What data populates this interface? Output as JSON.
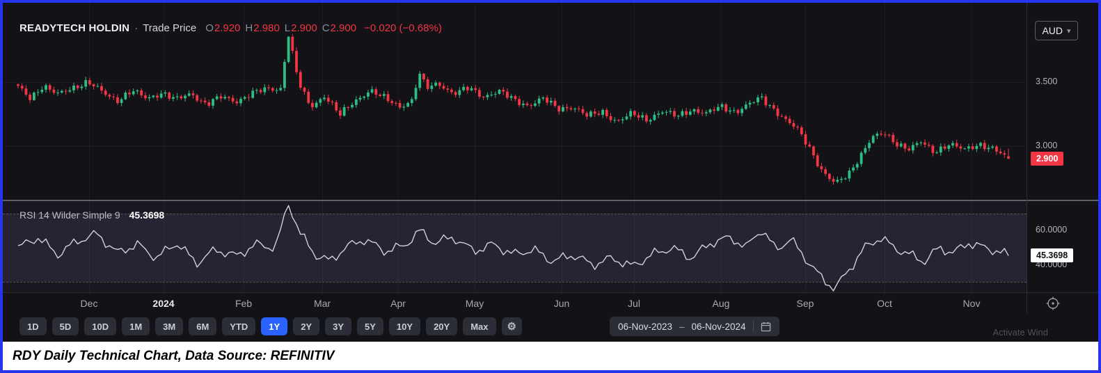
{
  "header": {
    "symbol": "READYTECH HOLDIN",
    "series_separator": "·",
    "series_type": "Trade Price",
    "ohlc": [
      {
        "label": "O",
        "value": "2.920"
      },
      {
        "label": "H",
        "value": "2.980"
      },
      {
        "label": "L",
        "value": "2.900"
      },
      {
        "label": "C",
        "value": "2.900"
      }
    ],
    "change": "−0.020 (−0.68%)",
    "currency_selector": "AUD"
  },
  "price_axis": {
    "last_price": "2.900"
  },
  "rsi_legend": {
    "title": "RSI 14 Wilder Simple 9",
    "value": "45.3698"
  },
  "toolbar": {
    "ranges": [
      "1D",
      "5D",
      "10D",
      "1M",
      "3M",
      "6M",
      "YTD",
      "1Y",
      "2Y",
      "3Y",
      "5Y",
      "10Y",
      "20Y",
      "Max"
    ],
    "active_range": "1Y",
    "gear_icon": "⚙",
    "date_from": "06-Nov-2023",
    "date_separator": "–",
    "date_to": "06-Nov-2024"
  },
  "caption": "RDY Daily Technical Chart, Data Source: REFINITIV",
  "watermark": "Activate Wind",
  "chart_data": {
    "type": "candlestick",
    "title": "READYTECH HOLDIN · Trade Price",
    "currency": "AUD",
    "period": {
      "from": "06-Nov-2023",
      "to": "06-Nov-2024",
      "interval": "Daily"
    },
    "last_ohlc": {
      "open": 2.92,
      "high": 2.98,
      "low": 2.9,
      "close": 2.9,
      "change": -0.02,
      "change_pct": -0.68
    },
    "y_axis": {
      "min": 2.58,
      "max": 4.12,
      "ticks": [
        3.5,
        3.0
      ],
      "tick_decimals": 3
    },
    "colors": {
      "up": "#2ebd85",
      "down": "#f23645"
    },
    "candle_count": 250,
    "close_trend_anchors": [
      [
        0.0,
        3.46
      ],
      [
        0.012,
        3.38
      ],
      [
        0.025,
        3.47
      ],
      [
        0.04,
        3.4
      ],
      [
        0.055,
        3.46
      ],
      [
        0.07,
        3.5
      ],
      [
        0.085,
        3.42
      ],
      [
        0.1,
        3.36
      ],
      [
        0.115,
        3.43
      ],
      [
        0.13,
        3.37
      ],
      [
        0.145,
        3.42
      ],
      [
        0.16,
        3.36
      ],
      [
        0.175,
        3.41
      ],
      [
        0.19,
        3.33
      ],
      [
        0.205,
        3.38
      ],
      [
        0.22,
        3.35
      ],
      [
        0.235,
        3.41
      ],
      [
        0.25,
        3.44
      ],
      [
        0.265,
        3.45
      ],
      [
        0.273,
        3.88
      ],
      [
        0.283,
        3.5
      ],
      [
        0.295,
        3.3
      ],
      [
        0.31,
        3.4
      ],
      [
        0.325,
        3.24
      ],
      [
        0.34,
        3.35
      ],
      [
        0.355,
        3.44
      ],
      [
        0.37,
        3.37
      ],
      [
        0.385,
        3.31
      ],
      [
        0.398,
        3.36
      ],
      [
        0.405,
        3.57
      ],
      [
        0.412,
        3.45
      ],
      [
        0.425,
        3.49
      ],
      [
        0.44,
        3.41
      ],
      [
        0.455,
        3.45
      ],
      [
        0.47,
        3.39
      ],
      [
        0.485,
        3.43
      ],
      [
        0.5,
        3.36
      ],
      [
        0.515,
        3.32
      ],
      [
        0.53,
        3.37
      ],
      [
        0.545,
        3.29
      ],
      [
        0.56,
        3.31
      ],
      [
        0.575,
        3.23
      ],
      [
        0.59,
        3.27
      ],
      [
        0.605,
        3.19
      ],
      [
        0.62,
        3.25
      ],
      [
        0.635,
        3.21
      ],
      [
        0.65,
        3.27
      ],
      [
        0.665,
        3.23
      ],
      [
        0.68,
        3.29
      ],
      [
        0.695,
        3.25
      ],
      [
        0.71,
        3.31
      ],
      [
        0.725,
        3.27
      ],
      [
        0.74,
        3.33
      ],
      [
        0.75,
        3.38
      ],
      [
        0.762,
        3.3
      ],
      [
        0.775,
        3.2
      ],
      [
        0.788,
        3.12
      ],
      [
        0.8,
        2.98
      ],
      [
        0.812,
        2.8
      ],
      [
        0.825,
        2.7
      ],
      [
        0.838,
        2.78
      ],
      [
        0.85,
        2.92
      ],
      [
        0.862,
        3.06
      ],
      [
        0.875,
        3.1
      ],
      [
        0.888,
        3.02
      ],
      [
        0.9,
        2.97
      ],
      [
        0.912,
        3.03
      ],
      [
        0.925,
        2.96
      ],
      [
        0.94,
        3.01
      ],
      [
        0.955,
        2.97
      ],
      [
        0.97,
        3.02
      ],
      [
        0.985,
        2.97
      ],
      [
        1.0,
        2.9
      ]
    ],
    "x_labels": [
      {
        "label": "Dec",
        "t": 0.072
      },
      {
        "label": "2024",
        "t": 0.147,
        "year": true
      },
      {
        "label": "Feb",
        "t": 0.228
      },
      {
        "label": "Mar",
        "t": 0.307
      },
      {
        "label": "Apr",
        "t": 0.384
      },
      {
        "label": "May",
        "t": 0.461
      },
      {
        "label": "Jun",
        "t": 0.549
      },
      {
        "label": "Jul",
        "t": 0.622
      },
      {
        "label": "Aug",
        "t": 0.71
      },
      {
        "label": "Sep",
        "t": 0.795
      },
      {
        "label": "Oct",
        "t": 0.875
      },
      {
        "label": "Nov",
        "t": 0.963
      }
    ],
    "indicator": {
      "type": "line",
      "name": "RSI 14 Wilder Simple 9",
      "last_value": 45.3698,
      "y_axis": {
        "min": 24,
        "max": 78,
        "ticks": [
          60,
          40
        ],
        "tick_decimals": 4
      },
      "bands": [
        70,
        30
      ],
      "value_anchors": [
        [
          0.0,
          50
        ],
        [
          0.02,
          56
        ],
        [
          0.04,
          46
        ],
        [
          0.06,
          54
        ],
        [
          0.08,
          58
        ],
        [
          0.1,
          47
        ],
        [
          0.12,
          52
        ],
        [
          0.14,
          44
        ],
        [
          0.16,
          53
        ],
        [
          0.18,
          41
        ],
        [
          0.2,
          49
        ],
        [
          0.22,
          45
        ],
        [
          0.24,
          52
        ],
        [
          0.26,
          50
        ],
        [
          0.273,
          76
        ],
        [
          0.285,
          58
        ],
        [
          0.3,
          46
        ],
        [
          0.315,
          42
        ],
        [
          0.33,
          50
        ],
        [
          0.35,
          55
        ],
        [
          0.37,
          48
        ],
        [
          0.39,
          51
        ],
        [
          0.405,
          60
        ],
        [
          0.42,
          53
        ],
        [
          0.44,
          56
        ],
        [
          0.46,
          48
        ],
        [
          0.48,
          52
        ],
        [
          0.5,
          46
        ],
        [
          0.52,
          49
        ],
        [
          0.54,
          42
        ],
        [
          0.56,
          46
        ],
        [
          0.58,
          40
        ],
        [
          0.6,
          44
        ],
        [
          0.62,
          39
        ],
        [
          0.64,
          46
        ],
        [
          0.66,
          50
        ],
        [
          0.68,
          44
        ],
        [
          0.7,
          53
        ],
        [
          0.72,
          56
        ],
        [
          0.735,
          50
        ],
        [
          0.75,
          61
        ],
        [
          0.765,
          49
        ],
        [
          0.78,
          55
        ],
        [
          0.795,
          44
        ],
        [
          0.81,
          33
        ],
        [
          0.825,
          26
        ],
        [
          0.84,
          38
        ],
        [
          0.855,
          50
        ],
        [
          0.87,
          56
        ],
        [
          0.885,
          50
        ],
        [
          0.9,
          46
        ],
        [
          0.915,
          42
        ],
        [
          0.93,
          50
        ],
        [
          0.945,
          47
        ],
        [
          0.96,
          53
        ],
        [
          0.975,
          50
        ],
        [
          0.99,
          48
        ],
        [
          1.0,
          45.37
        ]
      ]
    }
  }
}
